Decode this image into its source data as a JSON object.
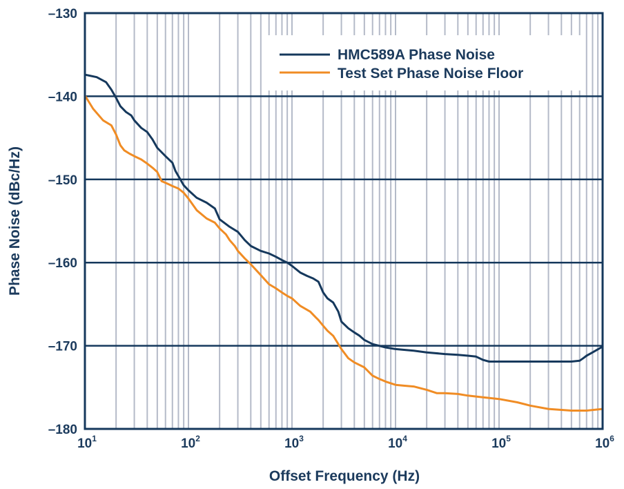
{
  "chart_data": {
    "type": "line",
    "title": "",
    "xlabel": "Offset Frequency (Hz)",
    "ylabel": "Phase Noise (dBc/Hz)",
    "xscale": "log",
    "xlim": [
      10,
      1000000
    ],
    "ylim": [
      -180,
      -130
    ],
    "grid": true,
    "legend_position": "top-right",
    "x_ticks": [
      {
        "base": "10",
        "exp": "1",
        "value": 10
      },
      {
        "base": "10",
        "exp": "2",
        "value": 100
      },
      {
        "base": "10",
        "exp": "3",
        "value": 1000
      },
      {
        "base": "10",
        "exp": "4",
        "value": 10000
      },
      {
        "base": "10",
        "exp": "5",
        "value": 100000
      },
      {
        "base": "10",
        "exp": "6",
        "value": 1000000
      }
    ],
    "y_ticks": [
      {
        "label": "–130",
        "value": -130
      },
      {
        "label": "–140",
        "value": -140
      },
      {
        "label": "–150",
        "value": -150
      },
      {
        "label": "–160",
        "value": -160
      },
      {
        "label": "–170",
        "value": -170
      },
      {
        "label": "–180",
        "value": -180
      }
    ],
    "series": [
      {
        "name": "HMC589A Phase Noise",
        "color": "#15385c",
        "x": [
          10,
          13,
          16,
          18,
          20,
          22,
          25,
          28,
          30,
          35,
          40,
          45,
          50,
          60,
          70,
          75,
          80,
          90,
          100,
          120,
          150,
          180,
          200,
          250,
          300,
          350,
          400,
          500,
          600,
          700,
          800,
          900,
          1000,
          1200,
          1400,
          1600,
          1800,
          2000,
          2200,
          2500,
          2800,
          3000,
          3500,
          4000,
          4500,
          5000,
          6000,
          8000,
          10000,
          15000,
          20000,
          30000,
          40000,
          50000,
          60000,
          70000,
          80000,
          100000,
          150000,
          200000,
          300000,
          500000,
          600000,
          650000,
          700000,
          800000,
          1000000
        ],
        "values": [
          -137.4,
          -137.7,
          -138.3,
          -139.2,
          -140.2,
          -141.2,
          -141.9,
          -142.3,
          -142.9,
          -143.8,
          -144.3,
          -145.2,
          -146.2,
          -147.2,
          -148.0,
          -149.0,
          -149.6,
          -150.7,
          -151.3,
          -152.2,
          -152.8,
          -153.5,
          -154.8,
          -155.7,
          -156.3,
          -157.3,
          -158.0,
          -158.6,
          -158.9,
          -159.3,
          -159.7,
          -160.0,
          -160.4,
          -161.2,
          -161.6,
          -161.9,
          -162.3,
          -163.6,
          -164.3,
          -164.8,
          -165.9,
          -167.1,
          -167.9,
          -168.4,
          -168.8,
          -169.3,
          -169.8,
          -170.2,
          -170.4,
          -170.6,
          -170.8,
          -171.0,
          -171.1,
          -171.2,
          -171.3,
          -171.7,
          -171.9,
          -171.9,
          -171.9,
          -171.9,
          -171.9,
          -171.9,
          -171.8,
          -171.5,
          -171.2,
          -170.8,
          -170.1
        ]
      },
      {
        "name": "Test Set Phase Noise Floor",
        "color": "#f08c24",
        "x": [
          10,
          12,
          15,
          18,
          20,
          22,
          24,
          27,
          30,
          35,
          40,
          45,
          50,
          55,
          60,
          65,
          70,
          80,
          90,
          100,
          120,
          150,
          180,
          200,
          230,
          250,
          280,
          300,
          350,
          400,
          500,
          600,
          700,
          800,
          900,
          1000,
          1200,
          1500,
          1700,
          1800,
          2000,
          2200,
          2500,
          3000,
          3500,
          4000,
          5000,
          6000,
          7000,
          8000,
          10000,
          12000,
          15000,
          20000,
          25000,
          30000,
          40000,
          50000,
          70000,
          100000,
          150000,
          200000,
          300000,
          500000,
          700000,
          1000000
        ],
        "values": [
          -139.9,
          -141.5,
          -142.9,
          -143.5,
          -144.6,
          -145.9,
          -146.5,
          -146.9,
          -147.2,
          -147.6,
          -148.1,
          -148.6,
          -149.1,
          -150.2,
          -150.4,
          -150.6,
          -150.8,
          -151.1,
          -151.6,
          -152.3,
          -153.7,
          -154.7,
          -155.2,
          -155.9,
          -156.6,
          -157.3,
          -158.0,
          -158.6,
          -159.5,
          -160.2,
          -161.5,
          -162.6,
          -163.1,
          -163.6,
          -164.0,
          -164.3,
          -165.2,
          -165.9,
          -166.6,
          -166.9,
          -167.6,
          -168.2,
          -168.8,
          -170.4,
          -171.5,
          -172.0,
          -172.6,
          -173.6,
          -174.0,
          -174.3,
          -174.7,
          -174.8,
          -174.9,
          -175.3,
          -175.7,
          -175.7,
          -175.8,
          -176.0,
          -176.2,
          -176.4,
          -176.8,
          -177.2,
          -177.6,
          -177.8,
          -177.8,
          -177.6
        ]
      }
    ]
  }
}
